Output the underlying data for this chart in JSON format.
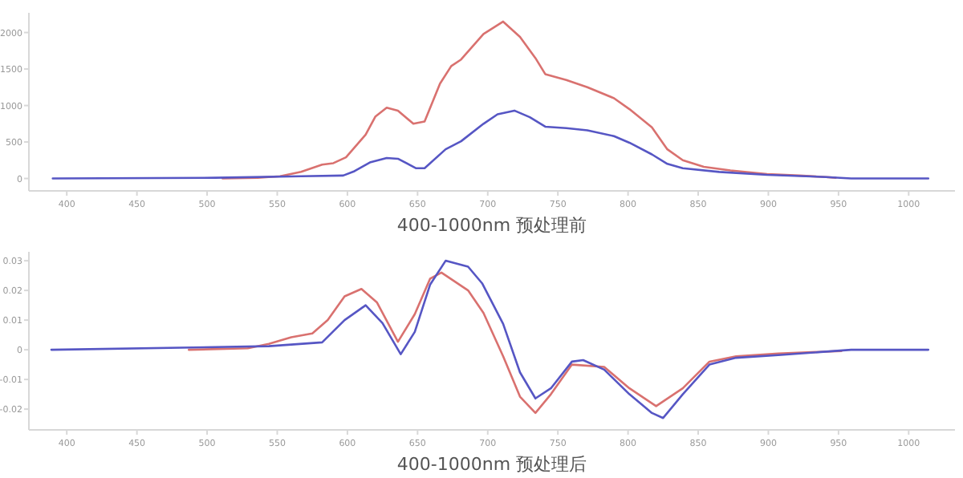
{
  "chart_data": [
    {
      "type": "line",
      "title": "400-1000nm 预处理前",
      "xlim": [
        373,
        1033
      ],
      "xticks": [
        400,
        450,
        500,
        550,
        600,
        650,
        700,
        750,
        800,
        850,
        900,
        950,
        1000
      ],
      "ylim": [
        -170,
        2270
      ],
      "yticks": [
        0,
        500,
        1000,
        1500,
        2000
      ],
      "grid": false,
      "marker": "none",
      "line_style": "solid",
      "series": [
        {
          "color": "#d9716f",
          "x": [
            511,
            536,
            552,
            567,
            582,
            590,
            599,
            613,
            620,
            628,
            636,
            647,
            655,
            666,
            674,
            681,
            697,
            711,
            723,
            734,
            741,
            756,
            771,
            790,
            801,
            817,
            828,
            839,
            854,
            873,
            899,
            922,
            941,
            948
          ],
          "values": [
            0,
            10,
            30,
            90,
            190,
            210,
            290,
            600,
            850,
            970,
            930,
            750,
            780,
            1300,
            1540,
            1630,
            1980,
            2150,
            1940,
            1650,
            1430,
            1350,
            1250,
            1100,
            950,
            700,
            400,
            250,
            160,
            110,
            60,
            40,
            20,
            10
          ]
        },
        {
          "color": "#5656c4",
          "x": [
            390,
            506,
            567,
            597,
            605,
            616,
            628,
            636,
            649,
            655,
            670,
            681,
            697,
            707,
            719,
            730,
            741,
            756,
            771,
            790,
            801,
            817,
            828,
            839,
            865,
            899,
            941,
            959,
            1014
          ],
          "values": [
            0,
            10,
            30,
            40,
            100,
            220,
            280,
            270,
            140,
            140,
            400,
            510,
            750,
            880,
            930,
            840,
            710,
            690,
            660,
            580,
            490,
            330,
            200,
            140,
            90,
            50,
            20,
            0,
            0
          ]
        }
      ]
    },
    {
      "type": "line",
      "title": "400-1000nm 预处理后",
      "xlim": [
        373,
        1033
      ],
      "xticks": [
        400,
        450,
        500,
        550,
        600,
        650,
        700,
        750,
        800,
        850,
        900,
        950,
        1000
      ],
      "ylim": [
        -0.027,
        0.033
      ],
      "yticks": [
        -0.02,
        -0.01,
        0,
        0.01,
        0.02,
        0.03
      ],
      "grid": false,
      "marker": "none",
      "line_style": "solid",
      "series": [
        {
          "color": "#d9716f",
          "x": [
            487,
            529,
            544,
            560,
            575,
            586,
            598,
            610,
            621,
            636,
            648,
            659,
            667,
            686,
            697,
            711,
            723,
            734,
            745,
            760,
            783,
            801,
            820,
            839,
            858,
            877,
            907,
            952
          ],
          "values": [
            0,
            0.0005,
            0.002,
            0.0042,
            0.0055,
            0.01,
            0.018,
            0.0205,
            0.016,
            0.0027,
            0.012,
            0.024,
            0.026,
            0.02,
            0.0124,
            -0.0022,
            -0.0158,
            -0.0213,
            -0.015,
            -0.005,
            -0.0058,
            -0.013,
            -0.019,
            -0.013,
            -0.004,
            -0.0022,
            -0.0013,
            -0.0004
          ]
        },
        {
          "color": "#5656c4",
          "x": [
            389,
            544,
            582,
            598,
            613,
            625,
            638,
            648,
            659,
            670,
            686,
            696,
            711,
            723,
            734,
            745,
            760,
            768,
            783,
            801,
            817,
            825,
            839,
            858,
            877,
            907,
            959,
            1014
          ],
          "values": [
            0,
            0.0012,
            0.0025,
            0.01,
            0.015,
            0.009,
            -0.0015,
            0.006,
            0.022,
            0.03,
            0.028,
            0.0224,
            0.0087,
            -0.0076,
            -0.0164,
            -0.013,
            -0.004,
            -0.0035,
            -0.0067,
            -0.015,
            -0.0213,
            -0.023,
            -0.015,
            -0.005,
            -0.0027,
            -0.0018,
            0,
            0
          ]
        }
      ]
    }
  ]
}
